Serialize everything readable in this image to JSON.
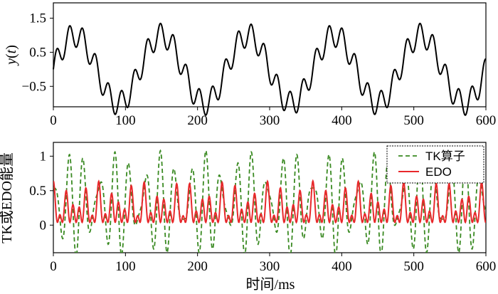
{
  "chart_data": [
    {
      "type": "line",
      "panel": "top",
      "ylabel": "y(t)",
      "ylabel_var": "y",
      "ylabel_arg": "t",
      "xlim": [
        0,
        600
      ],
      "ylim": [
        -1.1,
        1.95
      ],
      "xticks": [
        0,
        100,
        200,
        300,
        400,
        500,
        600
      ],
      "xtick_labels": [
        "0",
        "100",
        "200",
        "300",
        "400",
        "500",
        "600"
      ],
      "yticks": [
        1.5,
        0.5,
        -0.5
      ],
      "ytick_labels": [
        "1.5",
        "0.5",
        "−0.5"
      ],
      "series": [
        {
          "name": "y(t)",
          "color": "#000000",
          "style": "solid",
          "formula": "sin(2πt/120) + 0.35 sin(2πt/18)"
        }
      ]
    },
    {
      "type": "line",
      "panel": "bottom",
      "xlabel": "时间/ms",
      "ylabel": "TK或EDO能量",
      "xlim": [
        0,
        600
      ],
      "ylim": [
        -0.4,
        1.2
      ],
      "xticks": [
        0,
        100,
        200,
        300,
        400,
        500,
        600
      ],
      "xtick_labels": [
        "0",
        "100",
        "200",
        "300",
        "400",
        "500",
        "600"
      ],
      "yticks": [
        1,
        0.5,
        0
      ],
      "ytick_labels": [
        "1",
        "0.5",
        "0"
      ],
      "legend_position": "top-right",
      "series": [
        {
          "name": "TK算子",
          "color": "#3a8a22",
          "style": "dashed"
        },
        {
          "name": "EDO",
          "color": "#e8282b",
          "style": "solid"
        }
      ]
    }
  ],
  "legend": {
    "tk_label": "TK算子",
    "edo_label": "EDO"
  }
}
